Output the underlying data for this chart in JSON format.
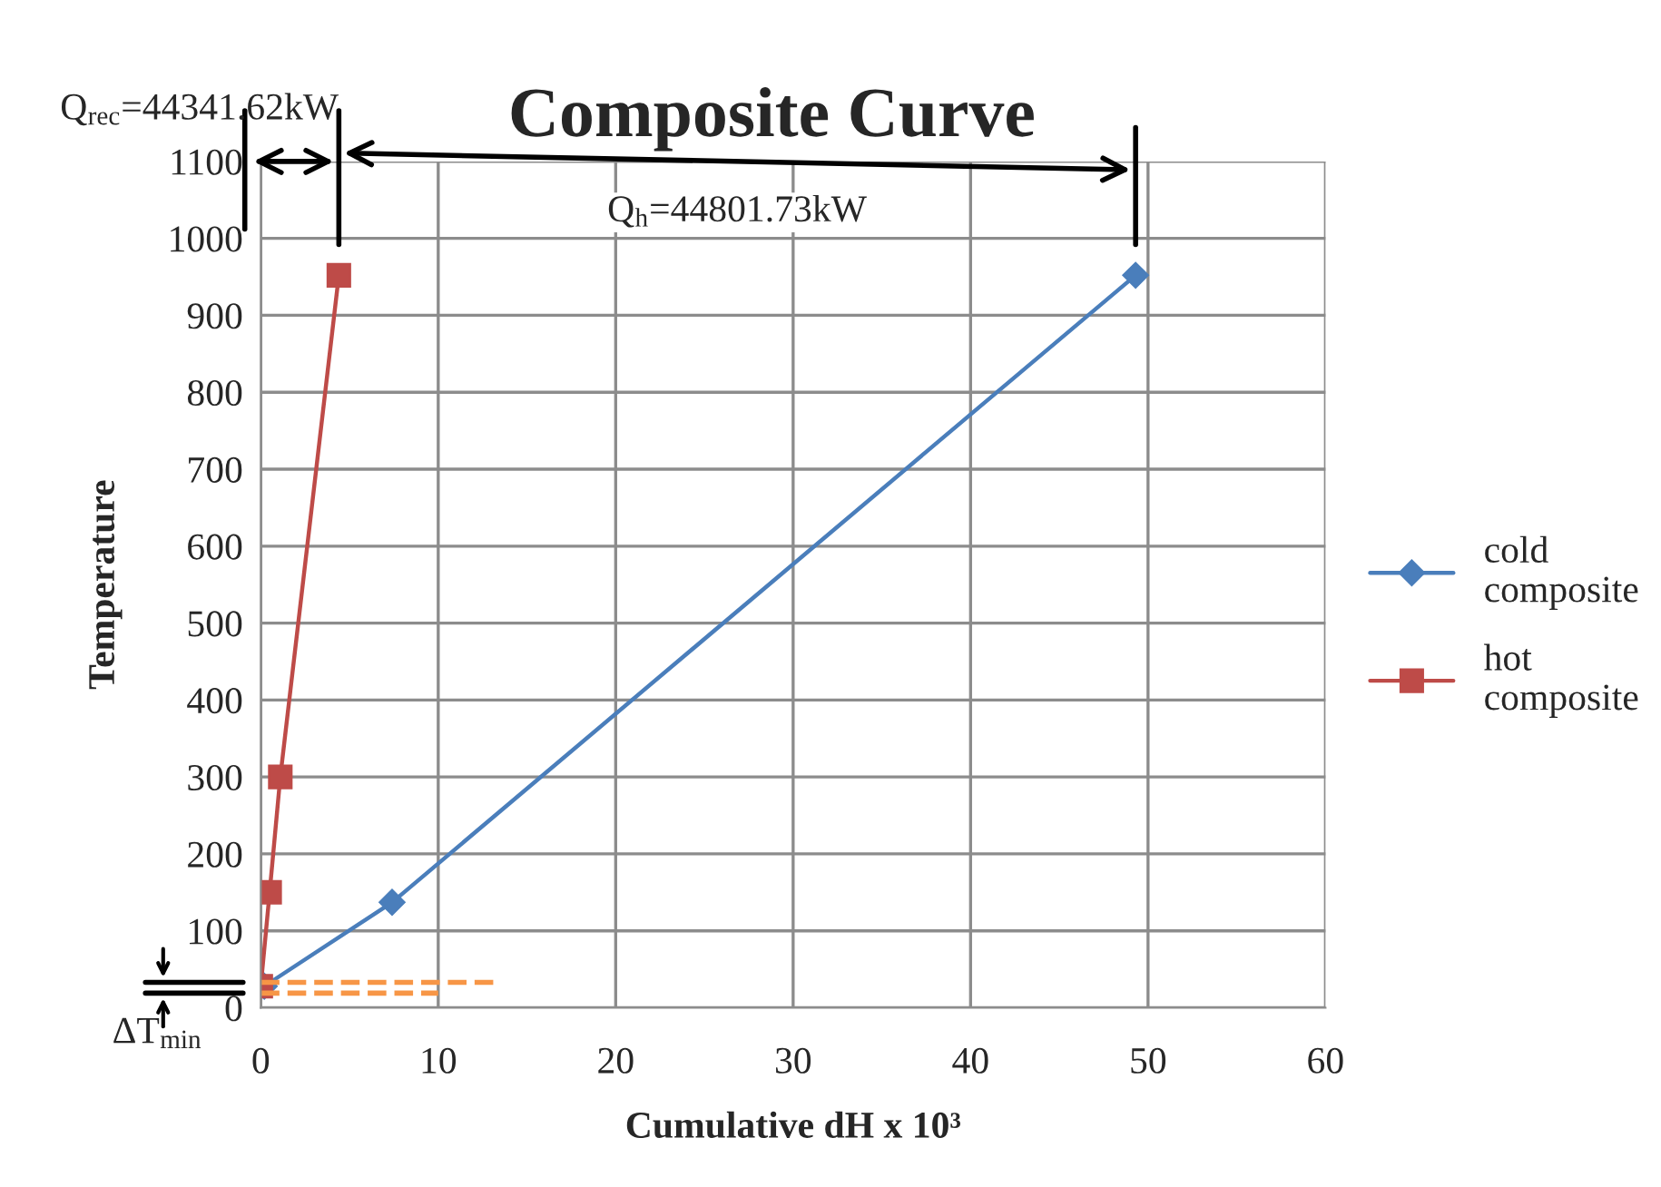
{
  "chart_data": {
    "type": "line",
    "title": "Composite Curve",
    "xlabel": "Cumulative dH x 10³",
    "ylabel": "Temperature",
    "xlim": [
      0,
      60
    ],
    "xticks": [
      0,
      10,
      20,
      30,
      40,
      50,
      60
    ],
    "ylim": [
      0,
      1100
    ],
    "yticks": [
      0,
      100,
      200,
      300,
      400,
      500,
      600,
      700,
      800,
      900,
      1000,
      1100
    ],
    "grid": true,
    "legend": "right",
    "series": [
      {
        "name": "cold composite",
        "color": "#4a7ebb",
        "marker": "diamond",
        "x": [
          0.2,
          7.4,
          49.3
        ],
        "values": [
          28,
          137,
          952
        ]
      },
      {
        "name": "hot composite",
        "color": "#be4b48",
        "marker": "square",
        "x": [
          0,
          0.5,
          1.1,
          4.4
        ],
        "values": [
          28,
          150,
          300,
          952
        ]
      },
      {
        "color": "#f79646",
        "line_style": "dashed",
        "marker": "none",
        "x": [
          0,
          13.5
        ],
        "values": [
          33,
          33
        ]
      },
      {
        "color": "#f79646",
        "line_style": "dashed",
        "marker": "none",
        "x": [
          0,
          10
        ],
        "values": [
          19,
          19
        ]
      }
    ],
    "annotations": [
      "Q$_{rec}$=44341.62kW",
      "Q$_{h}$=44801.73kW",
      "ΔT$_{min}$"
    ]
  }
}
